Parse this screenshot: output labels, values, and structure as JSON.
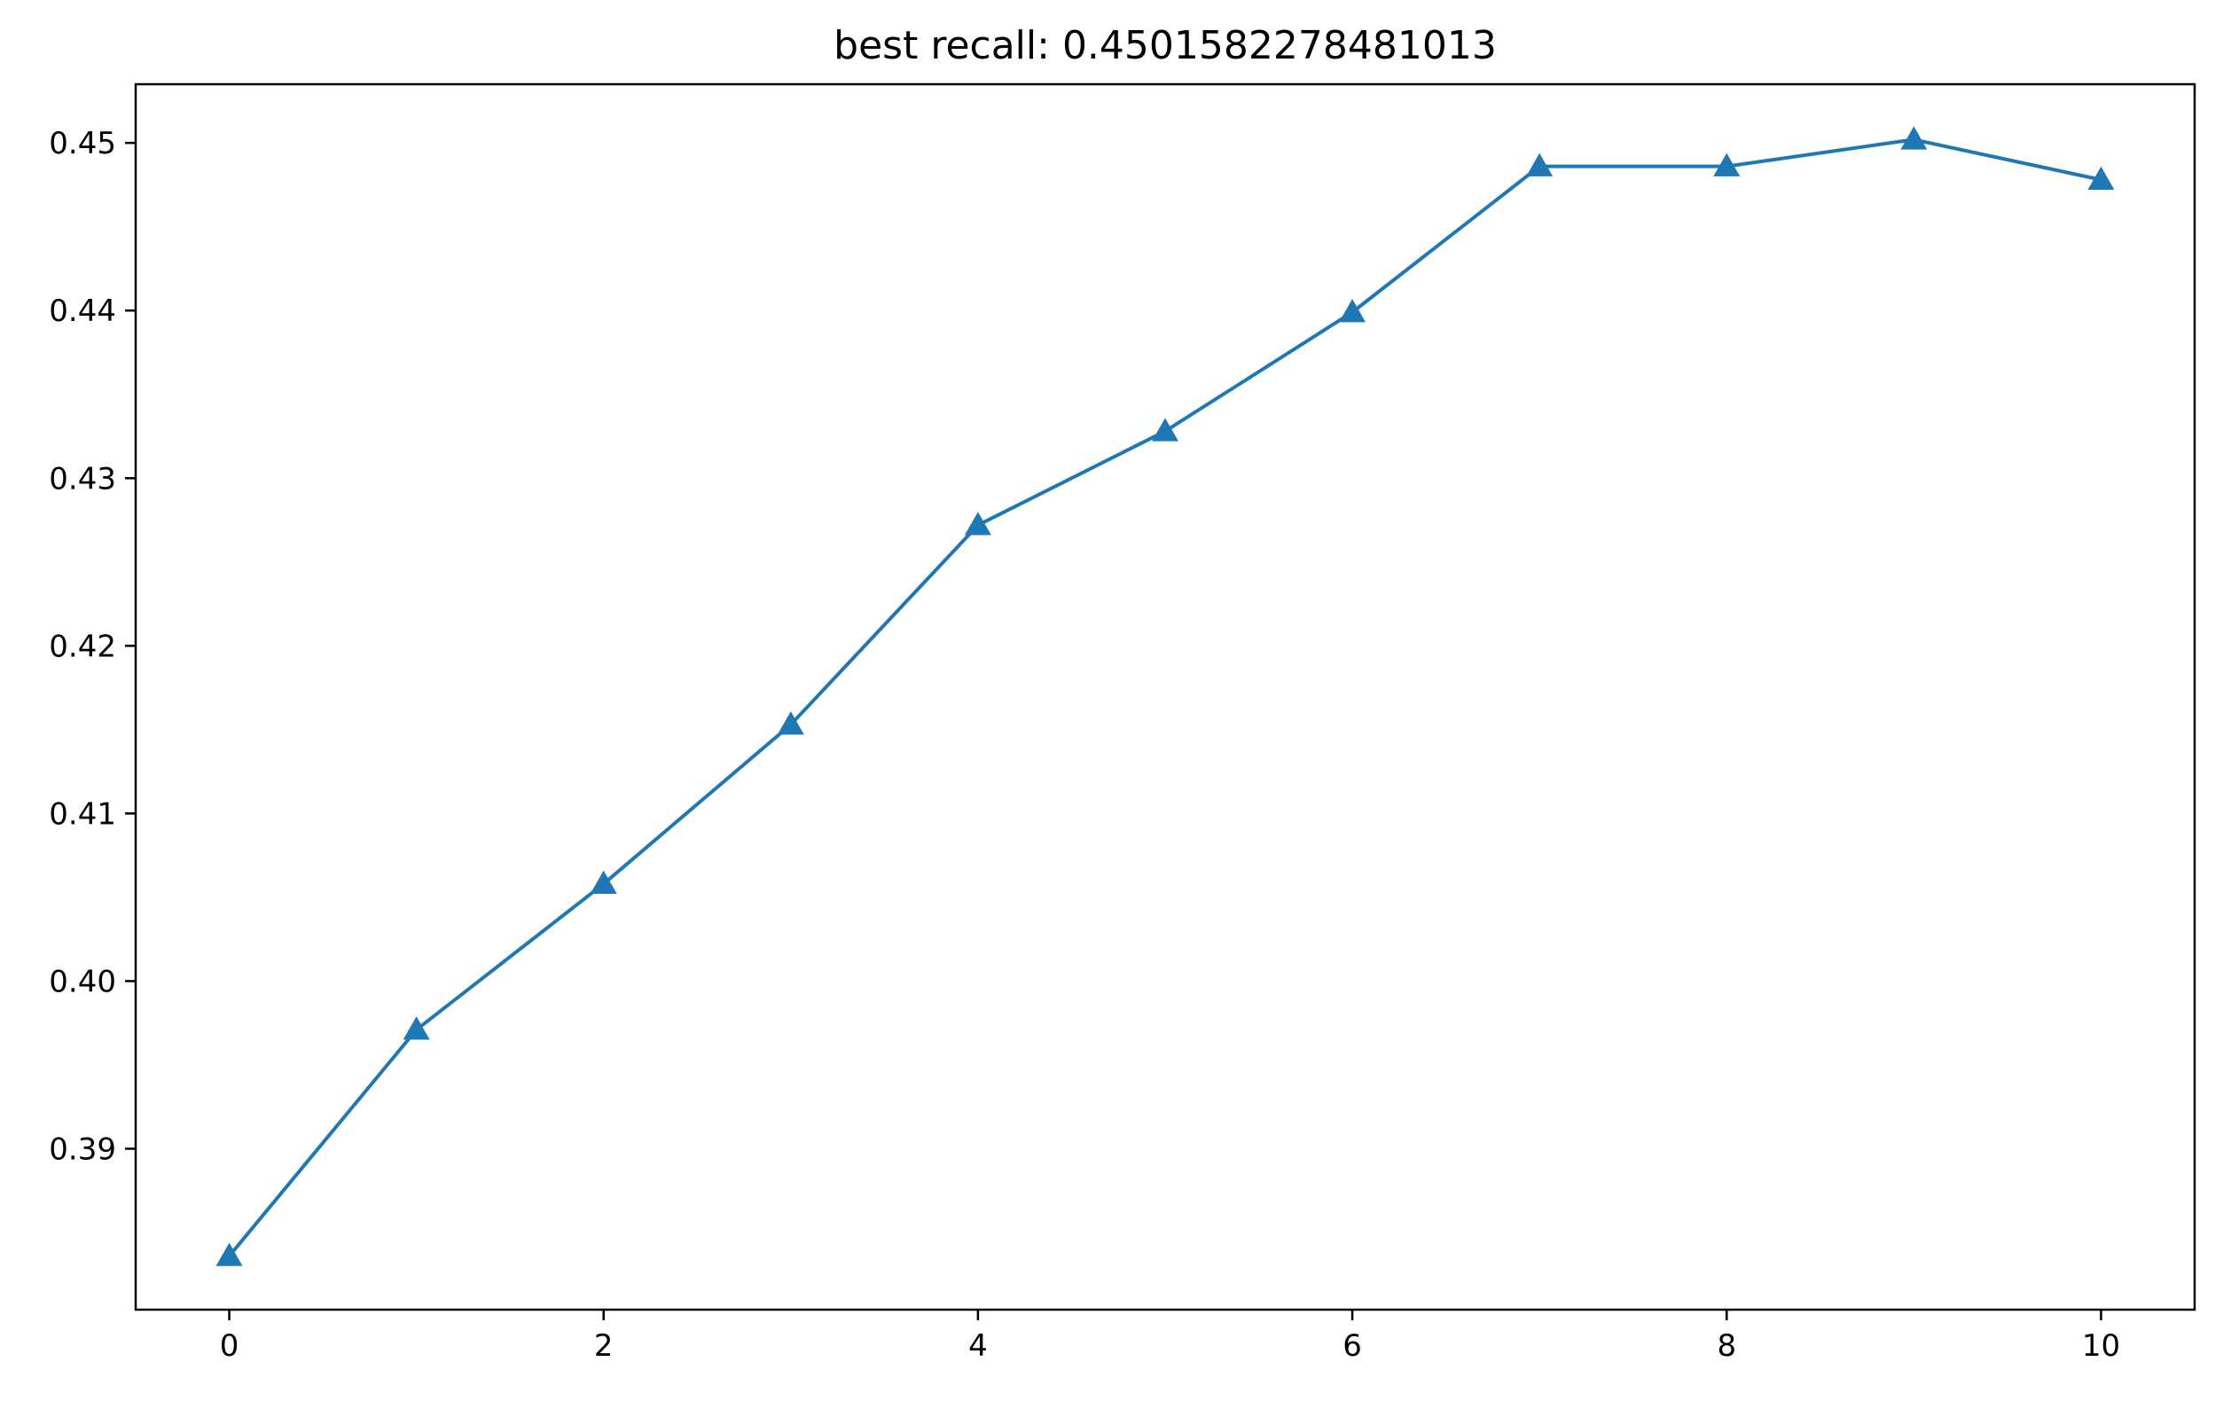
{
  "chart_data": {
    "type": "line",
    "title": "best recall: 0.4501582278481013",
    "xlabel": "",
    "ylabel": "",
    "x": [
      0,
      1,
      2,
      3,
      4,
      5,
      6,
      7,
      8,
      9,
      10
    ],
    "series": [
      {
        "values": [
          0.3836,
          0.3971,
          0.4058,
          0.4153,
          0.4272,
          0.4328,
          0.4399,
          0.4486,
          0.4486,
          0.4502,
          0.4478
        ],
        "color": "#1f77b4",
        "marker": "triangle-up"
      }
    ],
    "xlim": [
      -0.5,
      10.5
    ],
    "ylim": [
      0.3804,
      0.4535
    ],
    "xticks": [
      "0",
      "2",
      "4",
      "6",
      "8",
      "10"
    ],
    "yticks": [
      "0.39",
      "0.40",
      "0.41",
      "0.42",
      "0.43",
      "0.44",
      "0.45"
    ],
    "grid": false,
    "legend": "none"
  }
}
